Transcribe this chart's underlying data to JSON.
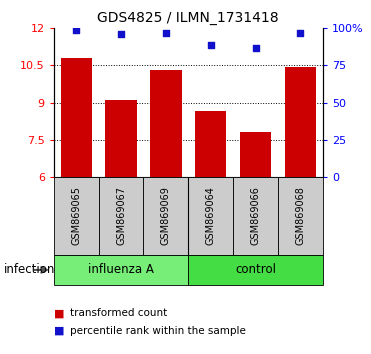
{
  "title": "GDS4825 / ILMN_1731418",
  "samples": [
    "GSM869065",
    "GSM869067",
    "GSM869069",
    "GSM869064",
    "GSM869066",
    "GSM869068"
  ],
  "bar_values": [
    10.8,
    9.1,
    10.3,
    8.65,
    7.8,
    10.45
  ],
  "percentile_values": [
    99,
    96.5,
    97,
    89,
    87,
    97
  ],
  "bar_color": "#cc0000",
  "dot_color": "#1111cc",
  "ylim_left": [
    6,
    12
  ],
  "ylim_right": [
    0,
    100
  ],
  "yticks_left": [
    6,
    7.5,
    9,
    10.5,
    12
  ],
  "ytick_labels_left": [
    "6",
    "7.5",
    "9",
    "10.5",
    "12"
  ],
  "yticks_right": [
    0,
    25,
    50,
    75,
    100
  ],
  "ytick_labels_right": [
    "0",
    "25",
    "50",
    "75",
    "100%"
  ],
  "groups": [
    {
      "label": "influenza A",
      "color": "#77ee77"
    },
    {
      "label": "control",
      "color": "#44dd44"
    }
  ],
  "group_label": "infection",
  "legend_bar_label": "transformed count",
  "legend_dot_label": "percentile rank within the sample",
  "bar_width": 0.7,
  "sample_box_color": "#cccccc",
  "dotted_grid": [
    7.5,
    9,
    10.5
  ]
}
